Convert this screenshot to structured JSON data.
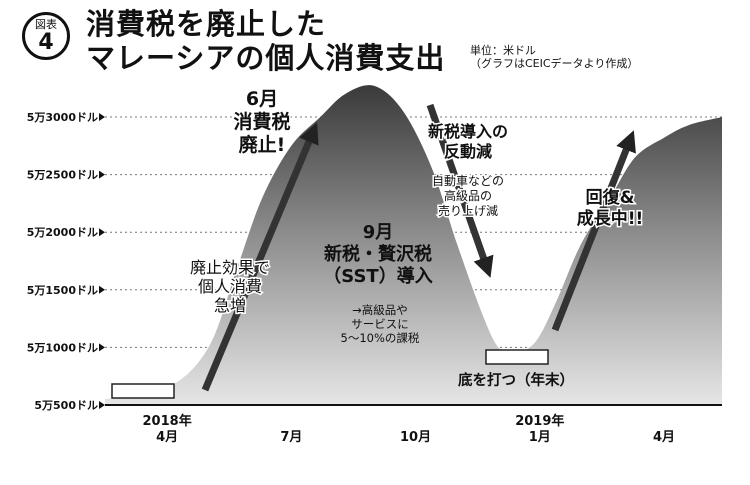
{
  "figure": {
    "badge_label": "図表",
    "badge_number": "4",
    "title_line1": "消費税を廃止した",
    "title_line2": "マレーシアの個人消費支出",
    "unit": "単位：米ドル",
    "source": "（グラフはCEICデータより作成）"
  },
  "chart_data": {
    "type": "area",
    "title": "消費税を廃止したマレーシアの個人消費支出",
    "ylabel": "",
    "xlabel": "",
    "ylim": [
      50000,
      53000
    ],
    "grid": true,
    "y_ticks": [
      {
        "value": 50500,
        "label": "5万500ドル"
      },
      {
        "value": 51000,
        "label": "5万1000ドル"
      },
      {
        "value": 51500,
        "label": "5万1500ドル"
      },
      {
        "value": 52000,
        "label": "5万2000ドル"
      },
      {
        "value": 52500,
        "label": "5万2500ドル"
      },
      {
        "value": 53000,
        "label": "5万3000ドル"
      }
    ],
    "x_ticks": [
      {
        "x": 4,
        "year": "2018年",
        "label": "4月"
      },
      {
        "x": 7,
        "year": "",
        "label": "7月"
      },
      {
        "x": 10,
        "year": "",
        "label": "10月"
      },
      {
        "x": 13,
        "year": "2019年",
        "label": "1月"
      },
      {
        "x": 16,
        "year": "",
        "label": "4月"
      }
    ],
    "series": [
      {
        "x": [
          2.5,
          4,
          5,
          5.7,
          6.3,
          7,
          7.7,
          8.3,
          9,
          9.7,
          10.4,
          11,
          11.6,
          12,
          12.4,
          12.9,
          13.4,
          14,
          14.7,
          15.3,
          16,
          16.6,
          17.4
        ],
        "values": [
          50550,
          50650,
          51000,
          51700,
          52300,
          52750,
          53000,
          53200,
          53270,
          53050,
          52550,
          51900,
          51300,
          51000,
          50950,
          51050,
          51400,
          51900,
          52300,
          52650,
          52820,
          52930,
          53000
        ]
      }
    ],
    "annotations": [
      {
        "id": "abolish",
        "text": [
          "6月",
          "消費税",
          "廃止!"
        ]
      },
      {
        "id": "effect",
        "text": [
          "廃止効果で",
          "個人消費",
          "急増"
        ]
      },
      {
        "id": "sst",
        "text": [
          "9月",
          "新税・贅沢税",
          "（SST）導入"
        ]
      },
      {
        "id": "sst-note",
        "text": [
          "→高級品や",
          "サービスに",
          "5〜10%の課税"
        ]
      },
      {
        "id": "backlash",
        "text": [
          "新税導入の",
          "反動減"
        ]
      },
      {
        "id": "backlash-note",
        "text": [
          "自動車などの",
          "高級品の",
          "売り上げ減"
        ]
      },
      {
        "id": "recovery",
        "text": [
          "回復&",
          "成長中!!"
        ]
      },
      {
        "id": "bottom",
        "text": [
          "底を打つ（年末）"
        ]
      }
    ]
  }
}
